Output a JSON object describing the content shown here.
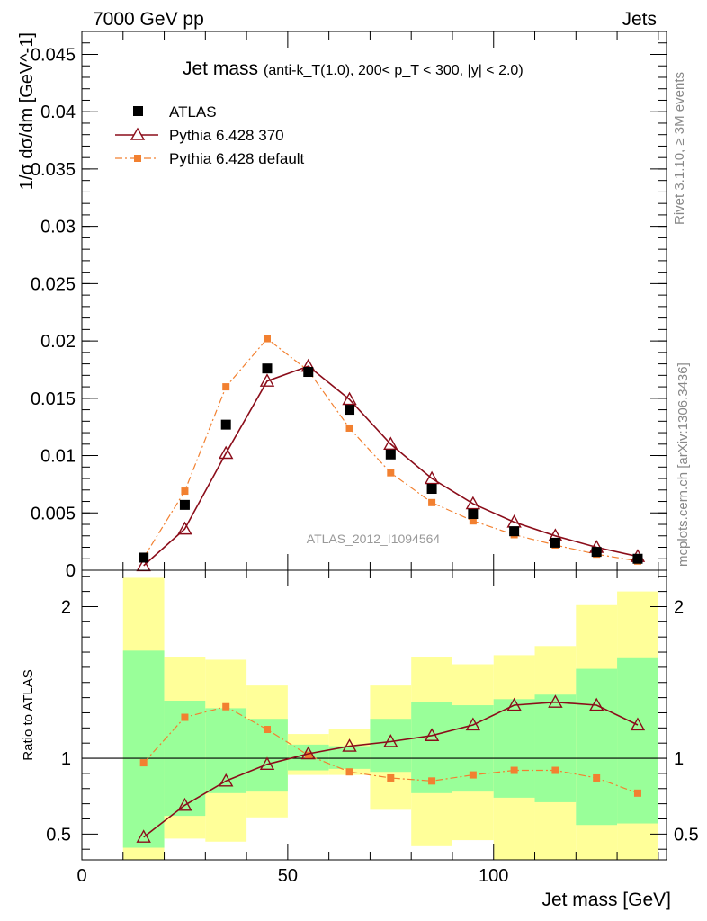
{
  "header": {
    "left_title": "7000 GeV pp",
    "right_title": "Jets"
  },
  "side_labels": {
    "rivet": "Rivet 3.1.10, ≥ 3M events",
    "mcplots": "mcplots.cern.ch [arXiv:1306.3436]"
  },
  "colors": {
    "atlas": "#000000",
    "pythia_370": "#8b0d1a",
    "pythia_default": "#f28030",
    "band_inner": "#99ff99",
    "band_outer": "#ffff99"
  },
  "chart_data": [
    {
      "type": "scatter",
      "panel": "main",
      "title_main": "Jet mass",
      "title_detail": "(anti-k_T(1.0), 200< p_T < 300, |y| < 2.0)",
      "ylabel": "1/σ dσ/dm [GeV^-1]",
      "analysis_label": "ATLAS_2012_I1094564",
      "xlim": [
        0,
        142
      ],
      "ylim": [
        0,
        0.047
      ],
      "yticks": [
        0,
        0.005,
        0.01,
        0.015,
        0.02,
        0.025,
        0.03,
        0.035,
        0.04,
        0.045
      ],
      "ytick_labels": [
        "0",
        "0.005",
        "0.01",
        "0.015",
        "0.02",
        "0.025",
        "0.03",
        "0.035",
        "0.04",
        "0.045"
      ],
      "x": [
        15,
        25,
        35,
        45,
        55,
        65,
        75,
        85,
        95,
        105,
        115,
        125,
        135
      ],
      "series": [
        {
          "name": "ATLAS",
          "marker": "square",
          "values": [
            0.0011,
            0.0057,
            0.0127,
            0.0176,
            0.0173,
            0.014,
            0.0101,
            0.0071,
            0.0049,
            0.0034,
            0.0024,
            0.0016,
            0.001
          ]
        },
        {
          "name": "Pythia 6.428 370",
          "marker": "open-triangle",
          "line": "solid",
          "values": [
            0.0004,
            0.0036,
            0.0102,
            0.0165,
            0.0178,
            0.0149,
            0.011,
            0.008,
            0.0058,
            0.0042,
            0.003,
            0.002,
            0.0012
          ]
        },
        {
          "name": "Pythia 6.428 default",
          "marker": "small-square",
          "line": "dash-dot",
          "values": [
            0.0011,
            0.0069,
            0.016,
            0.0202,
            0.0174,
            0.0124,
            0.0085,
            0.0059,
            0.0043,
            0.0031,
            0.0022,
            0.0014,
            0.0008
          ]
        }
      ]
    },
    {
      "type": "line",
      "panel": "ratio",
      "xlabel": "Jet mass [GeV]",
      "ylabel": "Ratio to ATLAS",
      "xlim": [
        0,
        142
      ],
      "ylim": [
        0.33,
        2.24
      ],
      "xticks": [
        0,
        50,
        100
      ],
      "xtick_labels": [
        "0",
        "50",
        "100"
      ],
      "yticks": [
        0.5,
        1,
        2
      ],
      "ytick_labels": [
        "0.5",
        "1",
        "2"
      ],
      "reference": 1,
      "bin_edges": [
        10,
        20,
        30,
        40,
        50,
        60,
        70,
        80,
        90,
        100,
        110,
        120,
        130,
        140
      ],
      "band_inner": {
        "low": [
          0.41,
          0.62,
          0.77,
          0.78,
          0.92,
          0.93,
          0.91,
          0.77,
          0.78,
          0.74,
          0.71,
          0.56,
          0.57
        ],
        "high": [
          1.71,
          1.38,
          1.33,
          1.26,
          1.09,
          1.08,
          1.26,
          1.37,
          1.35,
          1.39,
          1.42,
          1.59,
          1.66
        ]
      },
      "band_outer": {
        "low": [
          0.33,
          0.47,
          0.45,
          0.61,
          0.89,
          0.89,
          0.66,
          0.42,
          0.46,
          0.33,
          0.33,
          0.33,
          0.33
        ],
        "high": [
          2.19,
          1.67,
          1.65,
          1.48,
          1.16,
          1.19,
          1.48,
          1.67,
          1.62,
          1.68,
          1.74,
          2.01,
          2.1
        ]
      },
      "x": [
        15,
        25,
        35,
        45,
        55,
        65,
        75,
        85,
        95,
        105,
        115,
        125,
        135
      ],
      "series": [
        {
          "name": "Pythia 6.428 370",
          "marker": "open-triangle",
          "line": "solid",
          "values": [
            0.48,
            0.69,
            0.85,
            0.96,
            1.03,
            1.08,
            1.11,
            1.15,
            1.22,
            1.35,
            1.37,
            1.35,
            1.22
          ]
        },
        {
          "name": "Pythia 6.428 default",
          "marker": "small-square",
          "line": "dash-dot",
          "values": [
            0.97,
            1.27,
            1.34,
            1.19,
            1.02,
            0.91,
            0.87,
            0.85,
            0.89,
            0.92,
            0.92,
            0.87,
            0.77
          ]
        }
      ]
    }
  ]
}
